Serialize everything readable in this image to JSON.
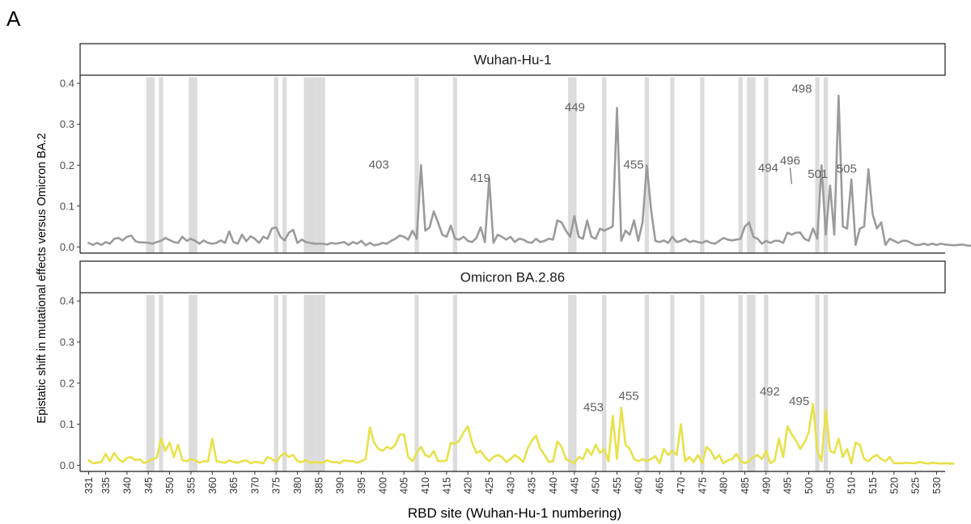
{
  "panel_label": "A",
  "chart_data": {
    "type": "line",
    "xlabel": "RBD site (Wuhan-Hu-1 numbering)",
    "ylabel": "Epistatic shift in mutational effects versus Omicron BA.2",
    "xlim": [
      329,
      532
    ],
    "ylim": [
      -0.015,
      0.42
    ],
    "yticks": [
      0.0,
      0.1,
      0.2,
      0.3,
      0.4
    ],
    "ytick_labels": [
      "0.0",
      "0.1",
      "0.2",
      "0.3",
      "0.4"
    ],
    "xticks": [
      331,
      335,
      340,
      345,
      350,
      355,
      360,
      365,
      370,
      375,
      380,
      385,
      390,
      395,
      400,
      405,
      410,
      415,
      420,
      425,
      430,
      435,
      440,
      445,
      450,
      455,
      460,
      465,
      470,
      475,
      480,
      485,
      490,
      495,
      500,
      505,
      510,
      515,
      520,
      525,
      530
    ],
    "grid": false,
    "shaded_sites": [
      345,
      346,
      348,
      355,
      356,
      375,
      377,
      382,
      383,
      384,
      385,
      386,
      408,
      417,
      444,
      445,
      452,
      462,
      468,
      475,
      484,
      486,
      487,
      490,
      502,
      504
    ],
    "shaded_color": "#dcdcdc",
    "x_start": 331,
    "x_step": 1,
    "panels": [
      {
        "strip": "Wuhan-Hu-1",
        "color": "#9b9b9b",
        "values": [
          0.01,
          0.005,
          0.01,
          0.005,
          0.012,
          0.008,
          0.02,
          0.022,
          0.016,
          0.025,
          0.028,
          0.014,
          0.011,
          0.011,
          0.01,
          0.008,
          0.012,
          0.015,
          0.022,
          0.017,
          0.012,
          0.01,
          0.025,
          0.015,
          0.02,
          0.015,
          0.008,
          0.016,
          0.01,
          0.008,
          0.01,
          0.016,
          0.01,
          0.038,
          0.012,
          0.008,
          0.03,
          0.014,
          0.026,
          0.02,
          0.01,
          0.025,
          0.02,
          0.045,
          0.048,
          0.025,
          0.016,
          0.035,
          0.042,
          0.01,
          0.018,
          0.012,
          0.01,
          0.008,
          0.008,
          0.008,
          0.006,
          0.01,
          0.008,
          0.01,
          0.012,
          0.005,
          0.012,
          0.008,
          0.015,
          0.004,
          0.01,
          0.004,
          0.006,
          0.01,
          0.008,
          0.015,
          0.02,
          0.028,
          0.025,
          0.018,
          0.04,
          0.02,
          0.2,
          0.04,
          0.048,
          0.087,
          0.06,
          0.03,
          0.025,
          0.052,
          0.02,
          0.018,
          0.025,
          0.015,
          0.012,
          0.022,
          0.048,
          0.012,
          0.167,
          0.01,
          0.03,
          0.025,
          0.018,
          0.025,
          0.012,
          0.02,
          0.018,
          0.012,
          0.01,
          0.02,
          0.012,
          0.015,
          0.02,
          0.018,
          0.065,
          0.06,
          0.04,
          0.025,
          0.075,
          0.025,
          0.02,
          0.065,
          0.025,
          0.02,
          0.045,
          0.04,
          0.045,
          0.05,
          0.34,
          0.015,
          0.04,
          0.03,
          0.065,
          0.015,
          0.06,
          0.2,
          0.09,
          0.015,
          0.012,
          0.016,
          0.01,
          0.025,
          0.012,
          0.015,
          0.02,
          0.012,
          0.015,
          0.012,
          0.01,
          0.015,
          0.01,
          0.008,
          0.015,
          0.022,
          0.018,
          0.016,
          0.018,
          0.02,
          0.05,
          0.06,
          0.025,
          0.02,
          0.008,
          0.015,
          0.01,
          0.015,
          0.015,
          0.01,
          0.035,
          0.03,
          0.035,
          0.035,
          0.02,
          0.015,
          0.045,
          0.02,
          0.2,
          0.03,
          0.15,
          0.03,
          0.37,
          0.05,
          0.045,
          0.165,
          0.005,
          0.045,
          0.05,
          0.19,
          0.08,
          0.045,
          0.06,
          0.005,
          0.02,
          0.015,
          0.01,
          0.015,
          0.015,
          0.01,
          0.005,
          0.005,
          0.008,
          0.005,
          0.008,
          0.005,
          0.008,
          0.006,
          0.005,
          0.004,
          0.005,
          0.006,
          0.004,
          0.003
        ],
        "annotations": [
          {
            "label": "403",
            "x": 403,
            "y": 0.2
          },
          {
            "label": "419",
            "x": 419,
            "y": 0.167
          },
          {
            "label": "449",
            "x": 449,
            "y": 0.34
          },
          {
            "label": "455",
            "x": 455,
            "y": 0.2
          },
          {
            "label": "494",
            "x": 494,
            "y": 0.2
          },
          {
            "label": "496",
            "x": 496,
            "y": 0.15
          },
          {
            "label": "498",
            "x": 498,
            "y": 0.37
          },
          {
            "label": "501",
            "x": 501,
            "y": 0.165
          },
          {
            "label": "505",
            "x": 505,
            "y": 0.19
          }
        ]
      },
      {
        "strip": "Omicron BA.2.86",
        "color": "#e8e14a",
        "values": [
          0.012,
          0.005,
          0.006,
          0.008,
          0.028,
          0.01,
          0.03,
          0.015,
          0.008,
          0.018,
          0.02,
          0.012,
          0.015,
          0.005,
          0.01,
          0.015,
          0.018,
          0.065,
          0.035,
          0.055,
          0.02,
          0.05,
          0.012,
          0.01,
          0.015,
          0.012,
          0.006,
          0.01,
          0.009,
          0.065,
          0.01,
          0.008,
          0.006,
          0.012,
          0.008,
          0.006,
          0.01,
          0.012,
          0.005,
          0.008,
          0.007,
          0.005,
          0.02,
          0.015,
          0.008,
          0.022,
          0.03,
          0.02,
          0.025,
          0.01,
          0.008,
          0.012,
          0.006,
          0.008,
          0.007,
          0.006,
          0.012,
          0.008,
          0.008,
          0.005,
          0.012,
          0.01,
          0.01,
          0.006,
          0.01,
          0.015,
          0.092,
          0.055,
          0.04,
          0.035,
          0.045,
          0.04,
          0.05,
          0.075,
          0.075,
          0.02,
          0.01,
          0.03,
          0.045,
          0.025,
          0.02,
          0.035,
          0.01,
          0.01,
          0.012,
          0.055,
          0.052,
          0.06,
          0.08,
          0.095,
          0.055,
          0.03,
          0.035,
          0.02,
          0.01,
          0.02,
          0.025,
          0.02,
          0.008,
          0.015,
          0.025,
          0.018,
          0.008,
          0.04,
          0.06,
          0.072,
          0.04,
          0.025,
          0.008,
          0.01,
          0.058,
          0.045,
          0.015,
          0.01,
          0.005,
          0.02,
          0.015,
          0.04,
          0.025,
          0.05,
          0.03,
          0.04,
          0.01,
          0.12,
          0.015,
          0.14,
          0.05,
          0.04,
          0.015,
          0.01,
          0.015,
          0.01,
          0.015,
          0.022,
          0.005,
          0.04,
          0.025,
          0.035,
          0.025,
          0.1,
          0.01,
          0.02,
          0.008,
          0.025,
          0.005,
          0.045,
          0.035,
          0.015,
          0.025,
          0.005,
          0.012,
          0.015,
          0.028,
          0.01,
          0.005,
          0.01,
          0.02,
          0.025,
          0.015,
          0.035,
          0.005,
          0.012,
          0.065,
          0.02,
          0.095,
          0.075,
          0.06,
          0.04,
          0.055,
          0.08,
          0.15,
          0.035,
          0.01,
          0.135,
          0.035,
          0.03,
          0.065,
          0.02,
          0.04,
          0.005,
          0.055,
          0.05,
          0.015,
          0.01,
          0.02,
          0.025,
          0.015,
          0.01,
          0.02,
          0.005,
          0.005,
          0.005,
          0.006,
          0.005,
          0.005,
          0.008,
          0.006,
          0.004,
          0.006,
          0.005,
          0.004,
          0.005,
          0.004,
          0.004
        ],
        "annotations": [
          {
            "label": "453",
            "x": 453,
            "y": 0.12
          },
          {
            "label": "455",
            "x": 455,
            "y": 0.14
          },
          {
            "label": "492",
            "x": 492,
            "y": 0.15
          },
          {
            "label": "495",
            "x": 495,
            "y": 0.135
          }
        ]
      }
    ]
  }
}
